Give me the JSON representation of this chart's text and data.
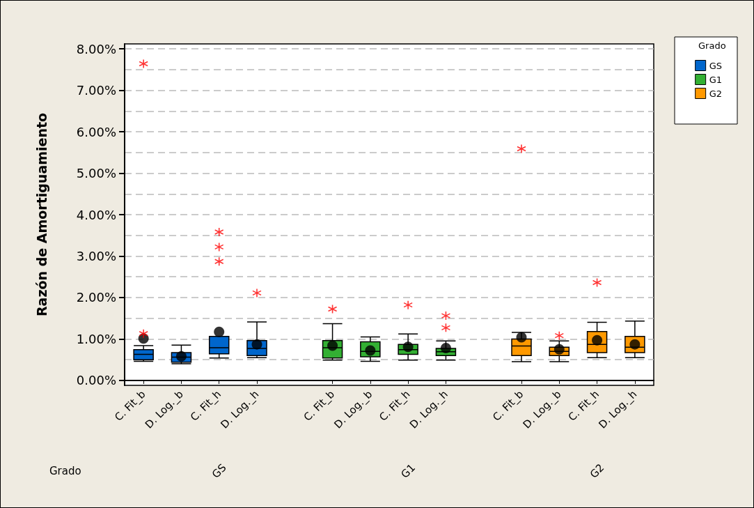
{
  "chart_data": {
    "type": "box",
    "ylabel": "Razón de Amortiguamiento",
    "xlabel": "Grado",
    "legend_title": "Grado",
    "categories": [
      "C. Fit_b",
      "D. Log._b",
      "C. Fit_h",
      "D. Log._h",
      "C. Fit_b",
      "D. Log._b",
      "C. Fit_h",
      "D. Log._h",
      "C. Fit_b",
      "D. Log._b",
      "C. Fit_h",
      "D. Log._h"
    ],
    "ylim": [
      -0.12,
      8.12
    ],
    "yticks": [
      {
        "value": 0,
        "label": "0.00%"
      },
      {
        "value": 1,
        "label": "1.00%"
      },
      {
        "value": 2,
        "label": "2.00%"
      },
      {
        "value": 3,
        "label": "3.00%"
      },
      {
        "value": 4,
        "label": "4.00%"
      },
      {
        "value": 5,
        "label": "5.00%"
      },
      {
        "value": 6,
        "label": "6.00%"
      },
      {
        "value": 7,
        "label": "7.00%"
      },
      {
        "value": 8,
        "label": "8.00%"
      }
    ],
    "grid": "y",
    "legend": "top right",
    "series": [
      {
        "name": "GS",
        "color": "#0066cc",
        "boxes": [
          {
            "low": 0.46,
            "q1": 0.5,
            "median": 0.63,
            "q3": 0.74,
            "high": 0.84,
            "mean": 1.01,
            "outliers": [
              7.64,
              1.13
            ]
          },
          {
            "low": 0.4,
            "q1": 0.44,
            "median": 0.56,
            "q3": 0.67,
            "high": 0.85,
            "mean": 0.58
          },
          {
            "low": 0.54,
            "q1": 0.64,
            "median": 0.79,
            "q3": 1.06,
            "high": 1.06,
            "mean": 1.17,
            "outliers": [
              3.58,
              3.22,
              2.87
            ]
          },
          {
            "low": 0.55,
            "q1": 0.6,
            "median": 0.77,
            "q3": 0.96,
            "high": 1.41,
            "mean": 0.87,
            "outliers": [
              2.11
            ]
          },
          null,
          null,
          null,
          null,
          null,
          null,
          null,
          null
        ]
      },
      {
        "name": "G1",
        "color": "#33b033",
        "boxes": [
          null,
          null,
          null,
          null,
          {
            "low": 0.49,
            "q1": 0.54,
            "median": 0.79,
            "q3": 0.96,
            "high": 1.37,
            "mean": 0.84,
            "outliers": [
              1.72
            ]
          },
          {
            "low": 0.46,
            "q1": 0.57,
            "median": 0.7,
            "q3": 0.93,
            "high": 1.05,
            "mean": 0.72
          },
          {
            "low": 0.49,
            "q1": 0.63,
            "median": 0.74,
            "q3": 0.87,
            "high": 1.12,
            "mean": 0.81,
            "outliers": [
              1.82
            ]
          },
          {
            "low": 0.49,
            "q1": 0.6,
            "median": 0.69,
            "q3": 0.77,
            "high": 0.95,
            "mean": 0.78,
            "outliers": [
              1.56,
              1.27
            ]
          },
          null,
          null,
          null,
          null
        ]
      },
      {
        "name": "G2",
        "color": "#ff9900",
        "boxes": [
          null,
          null,
          null,
          null,
          null,
          null,
          null,
          null,
          {
            "low": 0.45,
            "q1": 0.6,
            "median": 0.83,
            "q3": 1.0,
            "high": 1.16,
            "mean": 1.04,
            "outliers": [
              5.59
            ]
          },
          {
            "low": 0.45,
            "q1": 0.6,
            "median": 0.7,
            "q3": 0.8,
            "high": 0.95,
            "mean": 0.75,
            "outliers": [
              1.08
            ]
          },
          {
            "low": 0.55,
            "q1": 0.67,
            "median": 0.87,
            "q3": 1.18,
            "high": 1.4,
            "mean": 0.97,
            "outliers": [
              2.36
            ]
          },
          {
            "low": 0.55,
            "q1": 0.67,
            "median": 0.8,
            "q3": 1.06,
            "high": 1.43,
            "mean": 0.87
          }
        ]
      }
    ]
  }
}
